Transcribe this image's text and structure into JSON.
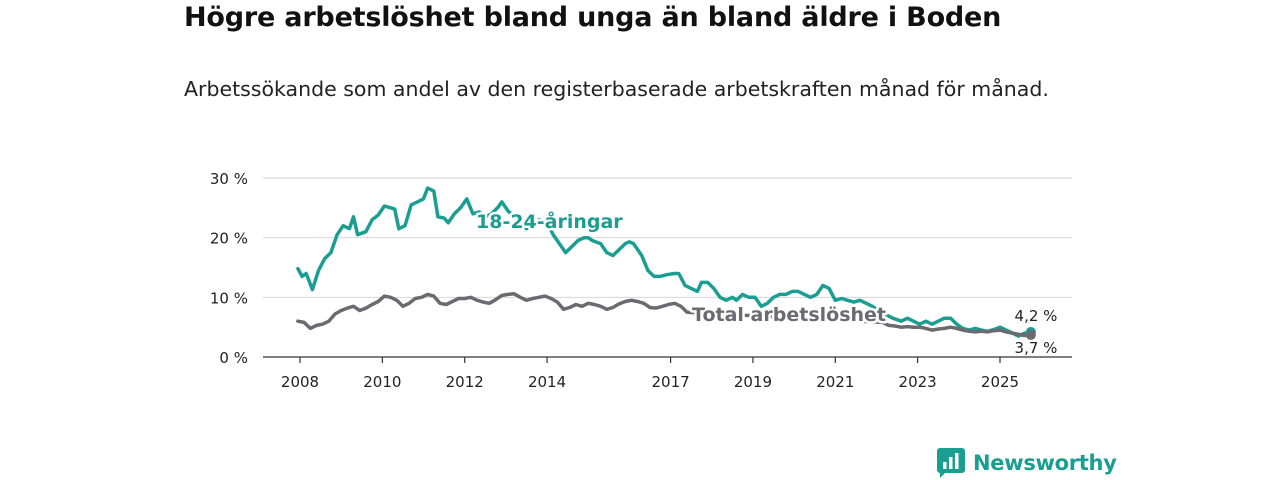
{
  "title": "Högre arbetslöshet bland unga än bland äldre i Boden",
  "subtitle": "Arbetssökande som andel av den registerbaserade arbetskraften månad för månad.",
  "brand": {
    "name": "Newsworthy",
    "color": "#1a9e92"
  },
  "chart_data": {
    "type": "line",
    "ylim": [
      0,
      30
    ],
    "y_ticks": [
      "0 %",
      "10 %",
      "20 %",
      "30 %"
    ],
    "x_ticks": [
      "2008",
      "2010",
      "2012",
      "2014",
      "2017",
      "2019",
      "2021",
      "2023",
      "2025"
    ],
    "series": [
      {
        "name": "18-24-åringar",
        "color": "#1a9e92",
        "end_label": "4,2 %",
        "points": [
          [
            2007.95,
            14.8
          ],
          [
            2008.05,
            13.5
          ],
          [
            2008.15,
            14.0
          ],
          [
            2008.3,
            11.3
          ],
          [
            2008.45,
            14.5
          ],
          [
            2008.6,
            16.5
          ],
          [
            2008.75,
            17.5
          ],
          [
            2008.9,
            20.5
          ],
          [
            2009.05,
            22.0
          ],
          [
            2009.2,
            21.5
          ],
          [
            2009.3,
            23.5
          ],
          [
            2009.4,
            20.5
          ],
          [
            2009.6,
            21.0
          ],
          [
            2009.75,
            23.0
          ],
          [
            2009.9,
            23.8
          ],
          [
            2010.05,
            25.3
          ],
          [
            2010.2,
            25.0
          ],
          [
            2010.3,
            24.8
          ],
          [
            2010.4,
            21.5
          ],
          [
            2010.55,
            22.0
          ],
          [
            2010.7,
            25.5
          ],
          [
            2010.85,
            26.0
          ],
          [
            2011.0,
            26.5
          ],
          [
            2011.1,
            28.3
          ],
          [
            2011.25,
            27.8
          ],
          [
            2011.35,
            23.5
          ],
          [
            2011.5,
            23.3
          ],
          [
            2011.6,
            22.5
          ],
          [
            2011.75,
            24.0
          ],
          [
            2011.9,
            25.0
          ],
          [
            2012.05,
            26.5
          ],
          [
            2012.2,
            24.0
          ],
          [
            2012.35,
            24.3
          ],
          [
            2012.5,
            23.5
          ],
          [
            2012.65,
            24.0
          ],
          [
            2012.8,
            25.0
          ],
          [
            2012.9,
            26.0
          ],
          [
            2013.05,
            24.5
          ],
          [
            2013.2,
            23.5
          ],
          [
            2013.35,
            22.5
          ],
          [
            2013.5,
            21.5
          ],
          [
            2013.65,
            22.0
          ],
          [
            2013.8,
            23.0
          ],
          [
            2014.0,
            22.5
          ],
          [
            2014.15,
            20.5
          ],
          [
            2014.3,
            19.0
          ],
          [
            2014.45,
            17.5
          ],
          [
            2014.6,
            18.5
          ],
          [
            2014.75,
            19.5
          ],
          [
            2014.9,
            20.0
          ],
          [
            2015.0,
            20.0
          ],
          [
            2015.1,
            19.5
          ],
          [
            2015.3,
            19.0
          ],
          [
            2015.45,
            17.5
          ],
          [
            2015.6,
            17.0
          ],
          [
            2015.75,
            18.0
          ],
          [
            2015.9,
            19.0
          ],
          [
            2016.0,
            19.3
          ],
          [
            2016.1,
            19.0
          ],
          [
            2016.3,
            17.0
          ],
          [
            2016.45,
            14.5
          ],
          [
            2016.6,
            13.5
          ],
          [
            2016.75,
            13.5
          ],
          [
            2016.9,
            13.8
          ],
          [
            2017.1,
            14.0
          ],
          [
            2017.2,
            14.0
          ],
          [
            2017.35,
            12.0
          ],
          [
            2017.5,
            11.5
          ],
          [
            2017.65,
            11.0
          ],
          [
            2017.75,
            12.5
          ],
          [
            2017.9,
            12.5
          ],
          [
            2018.05,
            11.5
          ],
          [
            2018.2,
            10.0
          ],
          [
            2018.35,
            9.5
          ],
          [
            2018.5,
            10.0
          ],
          [
            2018.6,
            9.5
          ],
          [
            2018.75,
            10.5
          ],
          [
            2018.9,
            10.0
          ],
          [
            2019.05,
            10.0
          ],
          [
            2019.2,
            8.5
          ],
          [
            2019.35,
            9.0
          ],
          [
            2019.5,
            10.0
          ],
          [
            2019.65,
            10.5
          ],
          [
            2019.8,
            10.5
          ],
          [
            2019.95,
            11.0
          ],
          [
            2020.1,
            11.0
          ],
          [
            2020.25,
            10.5
          ],
          [
            2020.4,
            10.0
          ],
          [
            2020.55,
            10.5
          ],
          [
            2020.7,
            12.0
          ],
          [
            2020.85,
            11.5
          ],
          [
            2021.0,
            9.5
          ],
          [
            2021.15,
            9.8
          ],
          [
            2021.3,
            9.5
          ],
          [
            2021.45,
            9.2
          ],
          [
            2021.6,
            9.5
          ],
          [
            2021.75,
            9.0
          ],
          [
            2021.9,
            8.5
          ],
          [
            2022.1,
            7.5
          ],
          [
            2022.25,
            7.0
          ],
          [
            2022.4,
            6.5
          ],
          [
            2022.6,
            6.0
          ],
          [
            2022.75,
            6.5
          ],
          [
            2022.9,
            6.0
          ],
          [
            2023.05,
            5.5
          ],
          [
            2023.2,
            6.0
          ],
          [
            2023.35,
            5.5
          ],
          [
            2023.5,
            6.0
          ],
          [
            2023.65,
            6.5
          ],
          [
            2023.8,
            6.5
          ],
          [
            2023.95,
            5.5
          ],
          [
            2024.1,
            4.8
          ],
          [
            2024.25,
            4.5
          ],
          [
            2024.4,
            4.8
          ],
          [
            2024.55,
            4.5
          ],
          [
            2024.7,
            4.3
          ],
          [
            2024.85,
            4.6
          ],
          [
            2025.0,
            5.0
          ],
          [
            2025.15,
            4.5
          ],
          [
            2025.3,
            4.0
          ],
          [
            2025.45,
            3.5
          ],
          [
            2025.6,
            4.0
          ],
          [
            2025.75,
            4.2
          ]
        ]
      },
      {
        "name": "Total arbetslöshet",
        "color": "#6b6a70",
        "end_label": "3,7 %",
        "points": [
          [
            2007.95,
            6.0
          ],
          [
            2008.1,
            5.8
          ],
          [
            2008.25,
            4.8
          ],
          [
            2008.4,
            5.3
          ],
          [
            2008.55,
            5.5
          ],
          [
            2008.7,
            6.0
          ],
          [
            2008.85,
            7.2
          ],
          [
            2009.0,
            7.8
          ],
          [
            2009.15,
            8.2
          ],
          [
            2009.3,
            8.5
          ],
          [
            2009.45,
            7.8
          ],
          [
            2009.6,
            8.2
          ],
          [
            2009.75,
            8.8
          ],
          [
            2009.9,
            9.3
          ],
          [
            2010.05,
            10.2
          ],
          [
            2010.2,
            10.0
          ],
          [
            2010.35,
            9.5
          ],
          [
            2010.5,
            8.5
          ],
          [
            2010.65,
            9.0
          ],
          [
            2010.8,
            9.8
          ],
          [
            2010.95,
            10.0
          ],
          [
            2011.1,
            10.5
          ],
          [
            2011.25,
            10.2
          ],
          [
            2011.4,
            9.0
          ],
          [
            2011.55,
            8.8
          ],
          [
            2011.7,
            9.3
          ],
          [
            2011.85,
            9.8
          ],
          [
            2012.0,
            9.8
          ],
          [
            2012.15,
            10.0
          ],
          [
            2012.3,
            9.5
          ],
          [
            2012.45,
            9.2
          ],
          [
            2012.6,
            9.0
          ],
          [
            2012.75,
            9.6
          ],
          [
            2012.9,
            10.3
          ],
          [
            2013.05,
            10.5
          ],
          [
            2013.2,
            10.6
          ],
          [
            2013.35,
            10.0
          ],
          [
            2013.5,
            9.5
          ],
          [
            2013.65,
            9.8
          ],
          [
            2013.8,
            10.0
          ],
          [
            2013.95,
            10.2
          ],
          [
            2014.1,
            9.8
          ],
          [
            2014.25,
            9.2
          ],
          [
            2014.4,
            8.0
          ],
          [
            2014.55,
            8.3
          ],
          [
            2014.7,
            8.8
          ],
          [
            2014.85,
            8.5
          ],
          [
            2015.0,
            9.0
          ],
          [
            2015.15,
            8.8
          ],
          [
            2015.3,
            8.5
          ],
          [
            2015.45,
            8.0
          ],
          [
            2015.6,
            8.3
          ],
          [
            2015.75,
            8.9
          ],
          [
            2015.9,
            9.3
          ],
          [
            2016.05,
            9.5
          ],
          [
            2016.2,
            9.3
          ],
          [
            2016.35,
            9.0
          ],
          [
            2016.5,
            8.3
          ],
          [
            2016.65,
            8.2
          ],
          [
            2016.8,
            8.5
          ],
          [
            2016.95,
            8.8
          ],
          [
            2017.1,
            9.0
          ],
          [
            2017.25,
            8.5
          ],
          [
            2017.4,
            7.5
          ],
          [
            2022.15,
            5.8
          ],
          [
            2022.3,
            5.3
          ],
          [
            2022.45,
            5.2
          ],
          [
            2022.6,
            5.0
          ],
          [
            2022.75,
            5.1
          ],
          [
            2022.9,
            5.0
          ],
          [
            2023.05,
            5.0
          ],
          [
            2023.2,
            4.8
          ],
          [
            2023.35,
            4.5
          ],
          [
            2023.5,
            4.7
          ],
          [
            2023.65,
            4.8
          ],
          [
            2023.8,
            5.0
          ],
          [
            2023.95,
            4.8
          ],
          [
            2024.1,
            4.5
          ],
          [
            2024.25,
            4.3
          ],
          [
            2024.4,
            4.2
          ],
          [
            2024.55,
            4.3
          ],
          [
            2024.7,
            4.2
          ],
          [
            2024.85,
            4.4
          ],
          [
            2025.0,
            4.5
          ],
          [
            2025.15,
            4.2
          ],
          [
            2025.3,
            4.0
          ],
          [
            2025.45,
            3.8
          ],
          [
            2025.6,
            3.6
          ],
          [
            2025.75,
            3.7
          ]
        ]
      }
    ]
  }
}
